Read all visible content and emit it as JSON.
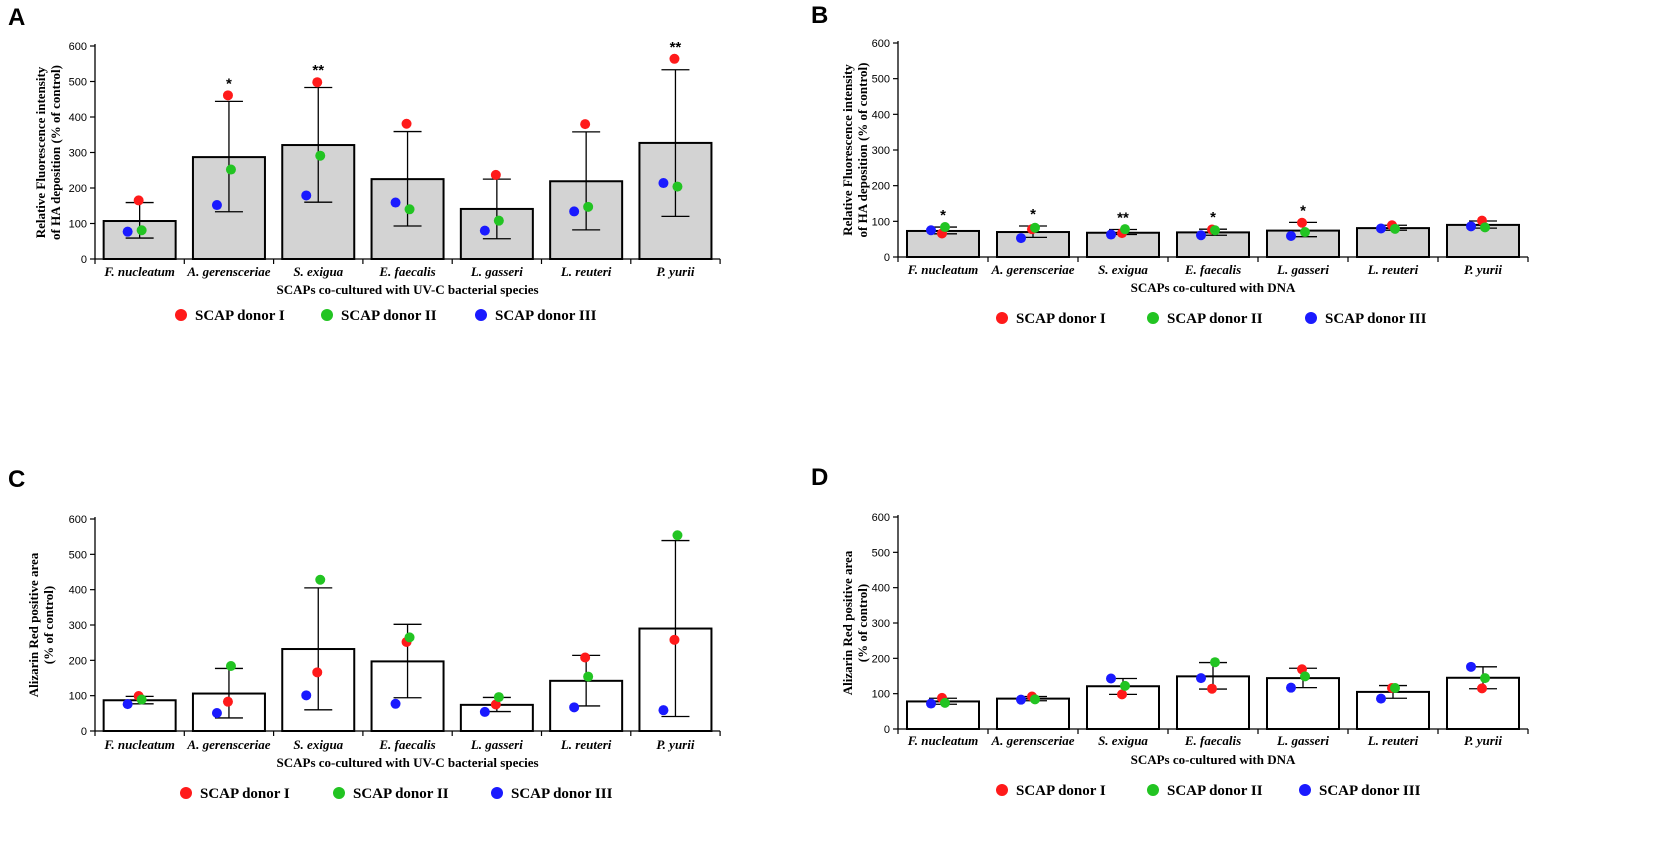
{
  "colors": {
    "donor1": "#ff1a1a",
    "donor2": "#22c422",
    "donor3": "#1a1aff",
    "bar_gray": "#d3d3d3",
    "bar_white": "#ffffff"
  },
  "chart_data": [
    {
      "panel": "A",
      "type": "bar",
      "ylabel_line1": "Relative Fluorescence intensity",
      "ylabel_line2": "of HA deposition (% of control)",
      "xlabel": "SCAPs co-cultured with UV-C bacterial species",
      "ylim": [
        0,
        600
      ],
      "yticks": [
        "0",
        "100",
        "200",
        "300",
        "400",
        "500",
        "600"
      ],
      "bar_fill": "#d3d3d3",
      "categories": [
        "F. nucleatum",
        "A. gerensceriae",
        "S. exigua",
        "E. faecalis",
        "L. gasseri",
        "L. reuteri",
        "P. yurii"
      ],
      "means": [
        107,
        287,
        321,
        225,
        141,
        219,
        327
      ],
      "err_low": [
        59,
        133,
        160,
        93,
        57,
        82,
        120
      ],
      "err_high": [
        159,
        444,
        483,
        359,
        225,
        358,
        533
      ],
      "significance": [
        "",
        "*",
        "**",
        "",
        "",
        "",
        "**"
      ],
      "series": [
        {
          "name": "SCAP donor I",
          "values": [
            165,
            461,
            498,
            381,
            237,
            380,
            564
          ]
        },
        {
          "name": "SCAP donor II",
          "values": [
            81,
            252,
            291,
            140,
            108,
            147,
            204
          ]
        },
        {
          "name": "SCAP donor III",
          "values": [
            77,
            152,
            179,
            159,
            80,
            134,
            214
          ]
        }
      ],
      "legend": [
        "SCAP donor I",
        "SCAP donor II",
        "SCAP donor III"
      ]
    },
    {
      "panel": "B",
      "type": "bar",
      "ylabel_line1": "Relative Fluorescence intensity",
      "ylabel_line2": "of HA deposition (% of control)",
      "xlabel": "SCAPs co-cultured with DNA",
      "ylim": [
        0,
        600
      ],
      "yticks": [
        "0",
        "100",
        "200",
        "300",
        "400",
        "500",
        "600"
      ],
      "bar_fill": "#d3d3d3",
      "categories": [
        "F. nucleatum",
        "A. gerensceriae",
        "S. exigua",
        "E. faecalis",
        "L. gasseri",
        "L. reuteri",
        "P. yurii"
      ],
      "means": [
        73,
        70,
        68,
        69,
        74,
        81,
        90
      ],
      "err_low": [
        65,
        55,
        63,
        61,
        57,
        75,
        81
      ],
      "err_high": [
        84,
        87,
        77,
        78,
        97,
        89,
        101
      ],
      "significance": [
        "*",
        "*",
        "**",
        "*",
        "*",
        "",
        ""
      ],
      "series": [
        {
          "name": "SCAP donor I",
          "values": [
            66,
            78,
            67,
            77,
            96,
            89,
            102
          ]
        },
        {
          "name": "SCAP donor II",
          "values": [
            84,
            82,
            78,
            75,
            70,
            79,
            83
          ]
        },
        {
          "name": "SCAP donor III",
          "values": [
            75,
            53,
            63,
            61,
            59,
            80,
            86
          ]
        }
      ],
      "legend": [
        "SCAP donor I",
        "SCAP donor II",
        "SCAP donor III"
      ]
    },
    {
      "panel": "C",
      "type": "bar",
      "ylabel_line1": "Alizarin Red positive area",
      "ylabel_line2": "(% of control)",
      "xlabel": "SCAPs co-cultured with UV-C bacterial species",
      "ylim": [
        0,
        600
      ],
      "yticks": [
        "0",
        "100",
        "200",
        "300",
        "400",
        "500",
        "600"
      ],
      "bar_fill": "#ffffff",
      "categories": [
        "F. nucleatum",
        "A. gerensceriae",
        "S. exigua",
        "E. faecalis",
        "L. gasseri",
        "L. reuteri",
        "P. yurii"
      ],
      "means": [
        87,
        106,
        232,
        197,
        74,
        142,
        290
      ],
      "err_low": [
        77,
        37,
        60,
        94,
        55,
        71,
        41
      ],
      "err_high": [
        98,
        177,
        405,
        302,
        95,
        214,
        539
      ],
      "significance": [
        "",
        "",
        "",
        "",
        "",
        "",
        ""
      ],
      "series": [
        {
          "name": "SCAP donor I",
          "values": [
            99,
            83,
            166,
            252,
            75,
            208,
            258
          ]
        },
        {
          "name": "SCAP donor II",
          "values": [
            89,
            184,
            428,
            265,
            96,
            154,
            554
          ]
        },
        {
          "name": "SCAP donor III",
          "values": [
            76,
            51,
            101,
            77,
            54,
            67,
            59
          ]
        }
      ],
      "legend": [
        "SCAP donor I",
        "SCAP donor II",
        "SCAP donor III"
      ]
    },
    {
      "panel": "D",
      "type": "bar",
      "ylabel_line1": "Alizarin Red positive area",
      "ylabel_line2": "(% of control)",
      "xlabel": "SCAPs co-cultured with DNA",
      "ylim": [
        0,
        600
      ],
      "yticks": [
        "0",
        "100",
        "200",
        "300",
        "400",
        "500",
        "600"
      ],
      "bar_fill": "#ffffff",
      "categories": [
        "F. nucleatum",
        "A. gerensceriae",
        "S. exigua",
        "E. faecalis",
        "L. gasseri",
        "L. reuteri",
        "P. yurii"
      ],
      "means": [
        78,
        86,
        121,
        149,
        144,
        105,
        145
      ],
      "err_low": [
        70,
        80,
        98,
        113,
        117,
        87,
        114
      ],
      "err_high": [
        87,
        92,
        143,
        188,
        172,
        123,
        176
      ],
      "significance": [
        "",
        "",
        "",
        "",
        "",
        "",
        ""
      ],
      "series": [
        {
          "name": "SCAP donor I",
          "values": [
            88,
            92,
            98,
            114,
            169,
            116,
            115
          ]
        },
        {
          "name": "SCAP donor II",
          "values": [
            74,
            84,
            122,
            189,
            149,
            116,
            144
          ]
        },
        {
          "name": "SCAP donor III",
          "values": [
            72,
            83,
            143,
            144,
            117,
            86,
            176
          ]
        }
      ],
      "legend": [
        "SCAP donor I",
        "SCAP donor II",
        "SCAP donor III"
      ]
    }
  ]
}
